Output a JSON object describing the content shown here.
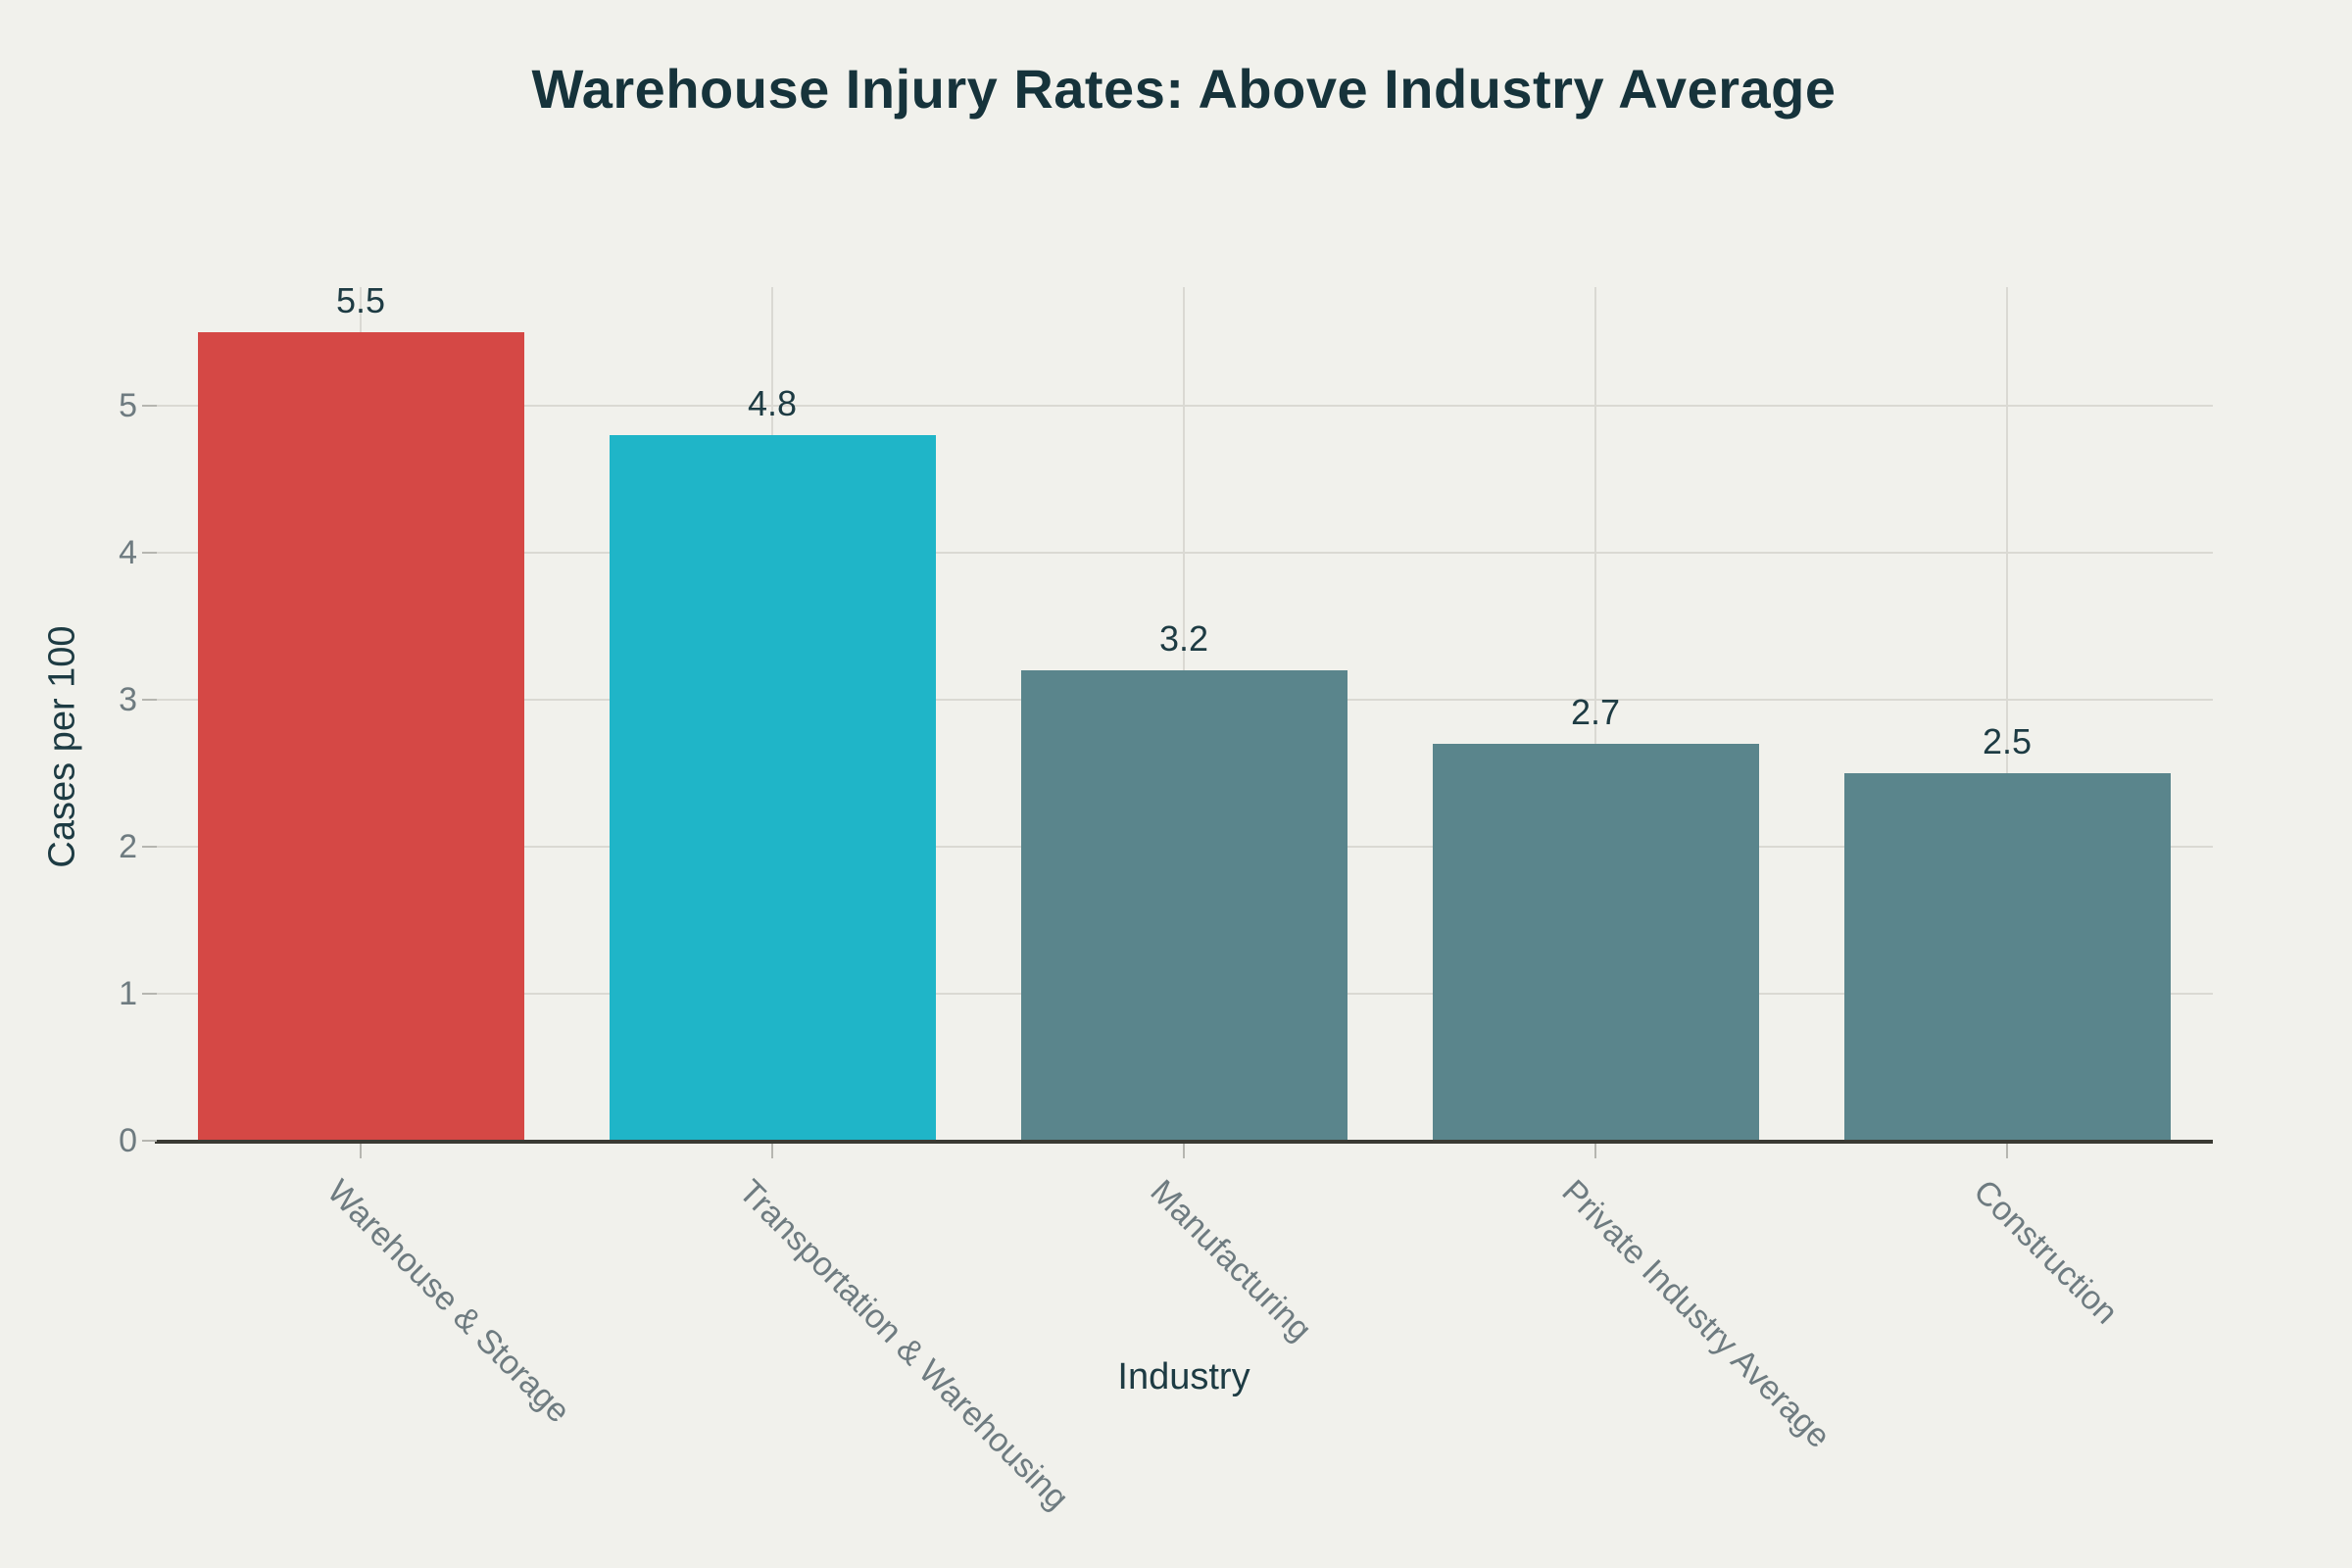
{
  "figure": {
    "title": "Warehouse Injury Rates: Above Industry Average",
    "x_axis_title": "Industry",
    "y_axis_title": "Cases per 100"
  },
  "chart_data": {
    "type": "bar",
    "title": "Warehouse Injury Rates: Above Industry Average",
    "xlabel": "Industry",
    "ylabel": "Cases per 100",
    "categories": [
      "Warehouse & Storage",
      "Transportation & Warehousing",
      "Manufacturing",
      "Private Industry Average",
      "Construction"
    ],
    "values": [
      5.5,
      4.8,
      3.2,
      2.7,
      2.5
    ],
    "value_labels": [
      "5.5",
      "4.8",
      "3.2",
      "2.7",
      "2.5"
    ],
    "bar_colors": [
      "#d54845",
      "#1fb5c8",
      "#5a858c",
      "#5a858c",
      "#5a858c"
    ],
    "yticks": [
      0,
      1,
      2,
      3,
      4,
      5
    ],
    "ylim": [
      0,
      5.81
    ],
    "grid": true,
    "legend_position": "none",
    "x_tick_rotation_deg": 45
  },
  "style": {
    "background": "#f1f1ec",
    "title_color": "#16333b",
    "axis_label_color": "#1d3b43",
    "tick_text_color": "#6e7b80",
    "grid_color": "#dad9d3",
    "axis_line_color": "#3a3a33",
    "tick_mark_color": "#b6b6b0"
  }
}
